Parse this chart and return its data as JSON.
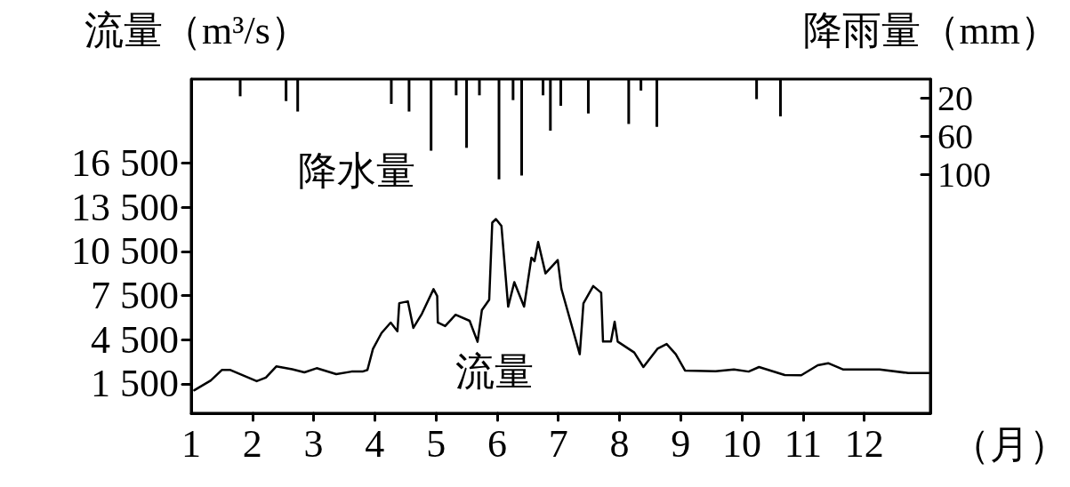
{
  "chart_data": {
    "type": "line",
    "ylabel": "流量（m³/s）",
    "y2label": "降雨量（mm）",
    "xlabel": "（月）",
    "annotations": [
      "降水量",
      "流量"
    ],
    "marker": "none",
    "xlim": [
      1,
      13.08
    ],
    "xticks": [
      1,
      2,
      3,
      4,
      5,
      6,
      7,
      8,
      9,
      10,
      11,
      12
    ],
    "ylim": [
      -500,
      22200
    ],
    "yticks": [
      {
        "value": 1500,
        "label": "1 500"
      },
      {
        "value": 4500,
        "label": "4 500"
      },
      {
        "value": 7500,
        "label": "7 500"
      },
      {
        "value": 10500,
        "label": "10 500"
      },
      {
        "value": 13500,
        "label": "13 500"
      },
      {
        "value": 16500,
        "label": "16 500"
      }
    ],
    "y2lim": [
      350,
      0
    ],
    "y2ticks": [
      20,
      60,
      100
    ],
    "series": [
      {
        "type": "bar",
        "axis": "y2",
        "color": "#000000",
        "x": [
          1.8,
          2.55,
          2.74,
          4.27,
          4.56,
          4.92,
          5.33,
          5.5,
          5.71,
          6.03,
          6.26,
          6.4,
          6.75,
          6.87,
          7.04,
          7.49,
          8.15,
          8.35,
          8.61,
          10.24,
          10.63
        ],
        "values": [
          18,
          23,
          34,
          26,
          34,
          75,
          17,
          72,
          17,
          105,
          22,
          101,
          17,
          54,
          28,
          36,
          47,
          12,
          50,
          21,
          39
        ]
      },
      {
        "color": "#000000",
        "x": [
          1.05,
          1.32,
          1.5,
          1.64,
          2.07,
          2.22,
          2.39,
          2.65,
          2.85,
          3.05,
          3.37,
          3.62,
          3.8,
          3.88,
          3.97,
          4.11,
          4.26,
          4.37,
          4.4,
          4.54,
          4.63,
          4.77,
          4.96,
          5.02,
          5.03,
          5.15,
          5.32,
          5.55,
          5.68,
          5.75,
          5.87,
          5.92,
          5.98,
          6.07,
          6.18,
          6.28,
          6.44,
          6.56,
          6.61,
          6.67,
          6.79,
          6.99,
          7.05,
          7.35,
          7.41,
          7.57,
          7.7,
          7.73,
          7.86,
          7.92,
          7.97,
          8.24,
          8.39,
          8.62,
          8.77,
          8.92,
          9.07,
          9.57,
          9.87,
          10.11,
          10.28,
          10.7,
          10.97,
          11.24,
          11.41,
          11.65,
          12.25,
          12.72,
          13.05
        ],
        "values": [
          1060,
          1730,
          2440,
          2440,
          1680,
          1920,
          2680,
          2490,
          2280,
          2560,
          2160,
          2330,
          2330,
          2440,
          3870,
          4950,
          5660,
          5070,
          6980,
          7100,
          5300,
          6260,
          7930,
          7460,
          5660,
          5420,
          6190,
          5780,
          4350,
          6500,
          7210,
          12450,
          12690,
          12220,
          6740,
          8400,
          6740,
          10070,
          9830,
          11140,
          9000,
          9910,
          7950,
          3510,
          6960,
          8140,
          7690,
          4370,
          4370,
          5720,
          4370,
          3630,
          2640,
          3880,
          4200,
          3510,
          2400,
          2350,
          2480,
          2330,
          2640,
          2100,
          2080,
          2760,
          2900,
          2480,
          2480,
          2230,
          2230
        ]
      }
    ]
  }
}
